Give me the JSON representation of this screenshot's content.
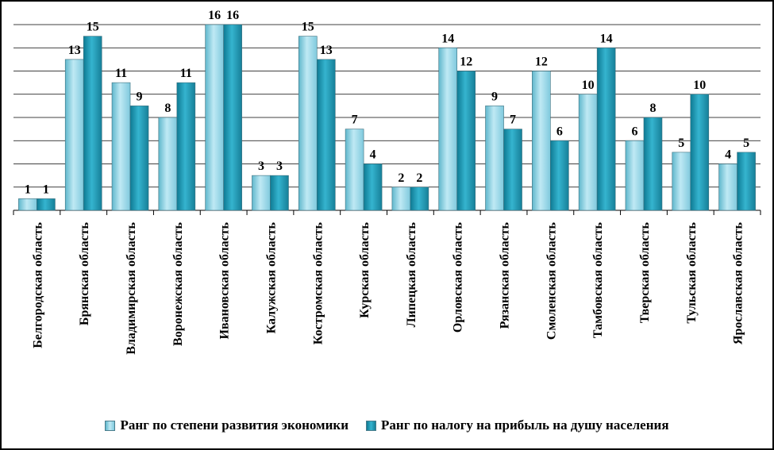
{
  "chart_data": {
    "type": "bar",
    "categories": [
      "Белгородская область",
      "Брянская область",
      "Владимирская область",
      "Воронежская область",
      "Ивановская область",
      "Калужская область",
      "Костромская область",
      "Курская область",
      "Липецкая область",
      "Орловская область",
      "Рязанская область",
      "Смоленская область",
      "Тамбовская область",
      "Тверская область",
      "Тульская область",
      "Ярославская область"
    ],
    "series": [
      {
        "name": "Ранг по степени развития экономики",
        "values": [
          1,
          13,
          11,
          8,
          16,
          3,
          15,
          7,
          2,
          14,
          9,
          12,
          10,
          6,
          5,
          4
        ],
        "color": "#8fd3e6"
      },
      {
        "name": "Ранг по налогу на прибыль на душу населения",
        "values": [
          1,
          15,
          9,
          11,
          16,
          3,
          13,
          4,
          2,
          12,
          7,
          6,
          14,
          8,
          10,
          5
        ],
        "color": "#1f97b3"
      }
    ],
    "ylim": [
      0,
      16
    ],
    "grid": true,
    "legend_position": "bottom"
  }
}
